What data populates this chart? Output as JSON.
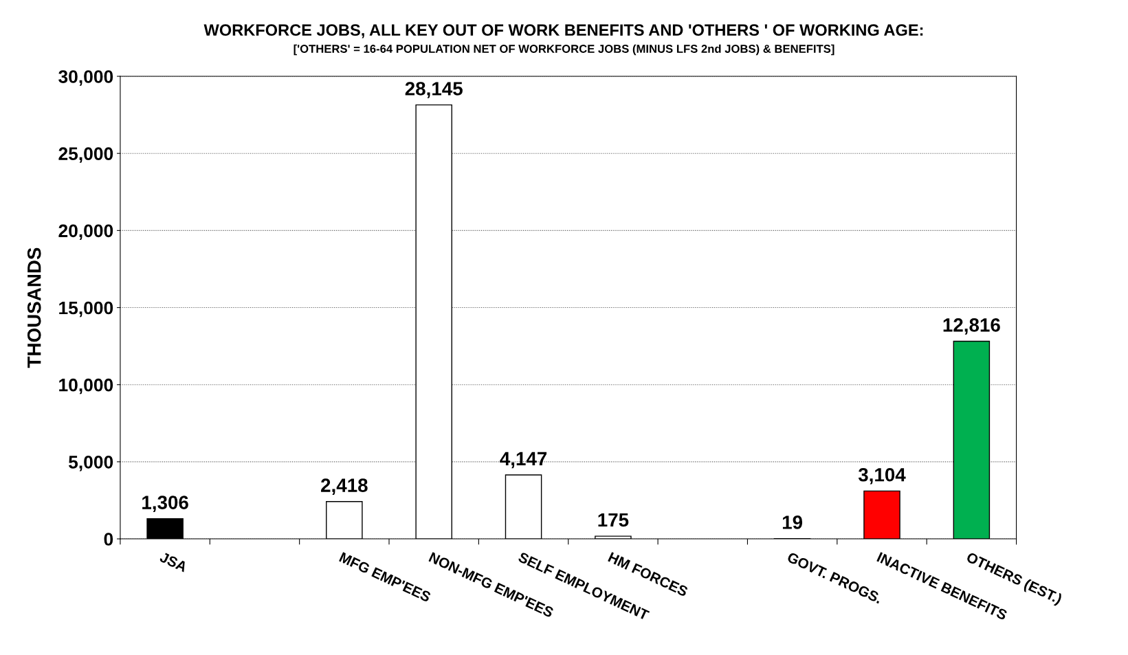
{
  "chart_data": {
    "type": "bar",
    "title": "WORKFORCE JOBS, ALL KEY OUT OF WORK BENEFITS AND 'OTHERS ' OF WORKING AGE:",
    "subtitle": "['OTHERS' = 16-64 POPULATION NET OF WORKFORCE JOBS (MINUS LFS 2nd JOBS) & BENEFITS]",
    "ylabel": "THOUSANDS",
    "categories": [
      "JSA",
      null,
      "MFG EMP'EES",
      "NON-MFG EMP'EES",
      "SELF EMPLOYMENT",
      "HM FORCES",
      null,
      "GOVT. PROGS.",
      "INACTIVE BENEFITS",
      "OTHERS (EST.)"
    ],
    "values": [
      1306,
      null,
      2418,
      28145,
      4147,
      175,
      null,
      19,
      3104,
      12816
    ],
    "value_labels": [
      "1,306",
      null,
      "2,418",
      "28,145",
      "4,147",
      "175",
      null,
      "19",
      "3,104",
      "12,816"
    ],
    "colors": [
      "#000000",
      "#ffffff",
      "#ffffff",
      "#ffffff",
      "#ffffff",
      "#ffffff",
      "#ffffff",
      "#ffffff",
      "#ff0000",
      "#00b050"
    ],
    "ylim": [
      0,
      30000
    ],
    "yticks": [
      {
        "value": 0,
        "label": "0"
      },
      {
        "value": 5000,
        "label": "5,000"
      },
      {
        "value": 10000,
        "label": "10,000"
      },
      {
        "value": 15000,
        "label": "15,000"
      },
      {
        "value": 20000,
        "label": "20,000"
      },
      {
        "value": 25000,
        "label": "25,000"
      },
      {
        "value": 30000,
        "label": "30,000"
      }
    ],
    "grid": "y",
    "legend": false
  }
}
